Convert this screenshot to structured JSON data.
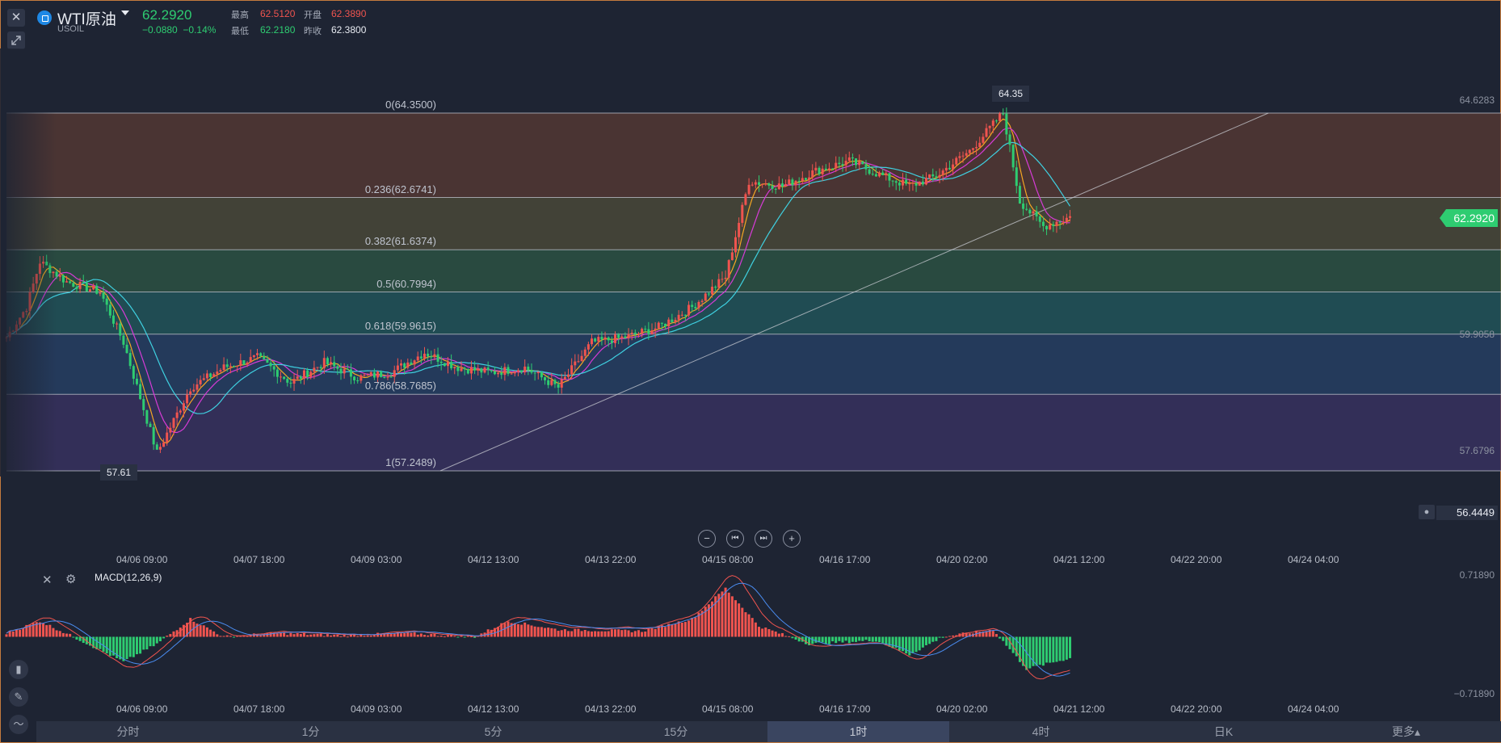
{
  "header": {
    "close_glyph": "✕",
    "symbol_icon": "coin-icon",
    "title": "WTI原油",
    "subtitle": "USOIL",
    "price": "62.2920",
    "change": "−0.0880",
    "change_pct": "−0.14%",
    "stats": [
      {
        "label": "最高",
        "value": "62.5120",
        "color": "red"
      },
      {
        "label": "开盘",
        "value": "62.3890",
        "color": "red"
      },
      {
        "label": "最低",
        "value": "62.2180",
        "color": "green"
      },
      {
        "label": "昨收",
        "value": "62.3800",
        "color": "white"
      }
    ]
  },
  "fibonacci": {
    "levels": [
      {
        "label": "0(64.3500)",
        "price": 64.35
      },
      {
        "label": "0.236(62.6741)",
        "price": 62.6741
      },
      {
        "label": "0.382(61.6374)",
        "price": 61.6374
      },
      {
        "label": "0.5(60.7994)",
        "price": 60.7994
      },
      {
        "label": "0.618(59.9615)",
        "price": 59.9615
      },
      {
        "label": "0.786(58.7685)",
        "price": 58.7685
      },
      {
        "label": "1(57.2489)",
        "price": 57.2489
      }
    ],
    "zone_colors": [
      "#5a3a34",
      "#4f4c3a",
      "#2d5745",
      "#225a5f",
      "#27416a",
      "#3b3366"
    ]
  },
  "price_axis": {
    "labels": [
      "64.6283",
      "59.9058",
      "57.6796"
    ],
    "current_price": "62.2920",
    "alert_value": "56.4449",
    "high_marker": "64.35",
    "low_marker": "57.61"
  },
  "time_axis": {
    "labels": [
      "04/06 09:00",
      "04/07 18:00",
      "04/09 03:00",
      "04/12 13:00",
      "04/13 22:00",
      "04/15 08:00",
      "04/16 17:00",
      "04/20 02:00",
      "04/21 12:00",
      "04/22 20:00",
      "04/24 04:00"
    ]
  },
  "controls": {
    "zoom_out": "−",
    "prev": "⏮",
    "next": "⏭",
    "zoom_in": "+"
  },
  "macd": {
    "title": "MACD(12,26,9)",
    "axis_top": "0.71890",
    "axis_bottom": "−0.71890"
  },
  "tabs": [
    {
      "label": "分时",
      "active": false
    },
    {
      "label": "1分",
      "active": false
    },
    {
      "label": "5分",
      "active": false
    },
    {
      "label": "15分",
      "active": false
    },
    {
      "label": "1时",
      "active": true
    },
    {
      "label": "4时",
      "active": false
    },
    {
      "label": "日K",
      "active": false
    },
    {
      "label": "更多▴",
      "active": false
    }
  ],
  "colors": {
    "up": "#f0544f",
    "down": "#2ecc71",
    "ma_orange": "#f5a623",
    "ma_magenta": "#d63bd6",
    "ma_cyan": "#3fd0e0",
    "price_tag": "#2ecc71"
  },
  "chart_data": {
    "type": "candlestick",
    "symbol": "USOIL",
    "y_range": [
      56.4449,
      64.6283
    ],
    "x_ticks": [
      "04/06 09:00",
      "04/07 18:00",
      "04/09 03:00",
      "04/12 13:00",
      "04/13 22:00",
      "04/15 08:00",
      "04/16 17:00",
      "04/20 02:00",
      "04/21 12:00",
      "04/22 20:00",
      "04/24 04:00"
    ],
    "anchors": [
      [
        0,
        59.9
      ],
      [
        6,
        60.5
      ],
      [
        10,
        61.4
      ],
      [
        18,
        61.0
      ],
      [
        28,
        60.8
      ],
      [
        35,
        59.8
      ],
      [
        45,
        57.6
      ],
      [
        55,
        58.9
      ],
      [
        65,
        59.3
      ],
      [
        75,
        59.5
      ],
      [
        85,
        59.0
      ],
      [
        95,
        59.4
      ],
      [
        105,
        59.1
      ],
      [
        115,
        59.2
      ],
      [
        125,
        59.6
      ],
      [
        135,
        59.3
      ],
      [
        145,
        59.2
      ],
      [
        155,
        59.3
      ],
      [
        165,
        58.9
      ],
      [
        175,
        59.8
      ],
      [
        185,
        59.9
      ],
      [
        195,
        60.1
      ],
      [
        205,
        60.5
      ],
      [
        215,
        61.1
      ],
      [
        222,
        63.0
      ],
      [
        232,
        62.9
      ],
      [
        242,
        63.2
      ],
      [
        252,
        63.4
      ],
      [
        262,
        63.1
      ],
      [
        270,
        62.9
      ],
      [
        278,
        63.1
      ],
      [
        288,
        63.6
      ],
      [
        298,
        64.35
      ],
      [
        303,
        62.6
      ],
      [
        310,
        62.1
      ],
      [
        318,
        62.29
      ]
    ],
    "macd_anchors": [
      [
        0,
        0.05
      ],
      [
        10,
        0.22
      ],
      [
        20,
        0.0
      ],
      [
        35,
        -0.35
      ],
      [
        45,
        -0.1
      ],
      [
        55,
        0.25
      ],
      [
        65,
        0.0
      ],
      [
        80,
        0.05
      ],
      [
        100,
        0.02
      ],
      [
        120,
        0.05
      ],
      [
        140,
        0.0
      ],
      [
        150,
        0.22
      ],
      [
        165,
        0.1
      ],
      [
        190,
        0.08
      ],
      [
        205,
        0.25
      ],
      [
        215,
        0.68
      ],
      [
        225,
        0.15
      ],
      [
        240,
        -0.1
      ],
      [
        260,
        -0.05
      ],
      [
        270,
        -0.25
      ],
      [
        280,
        0.0
      ],
      [
        295,
        0.1
      ],
      [
        305,
        -0.45
      ],
      [
        318,
        -0.3
      ]
    ],
    "macd_range": [
      -0.7189,
      0.7189
    ]
  }
}
